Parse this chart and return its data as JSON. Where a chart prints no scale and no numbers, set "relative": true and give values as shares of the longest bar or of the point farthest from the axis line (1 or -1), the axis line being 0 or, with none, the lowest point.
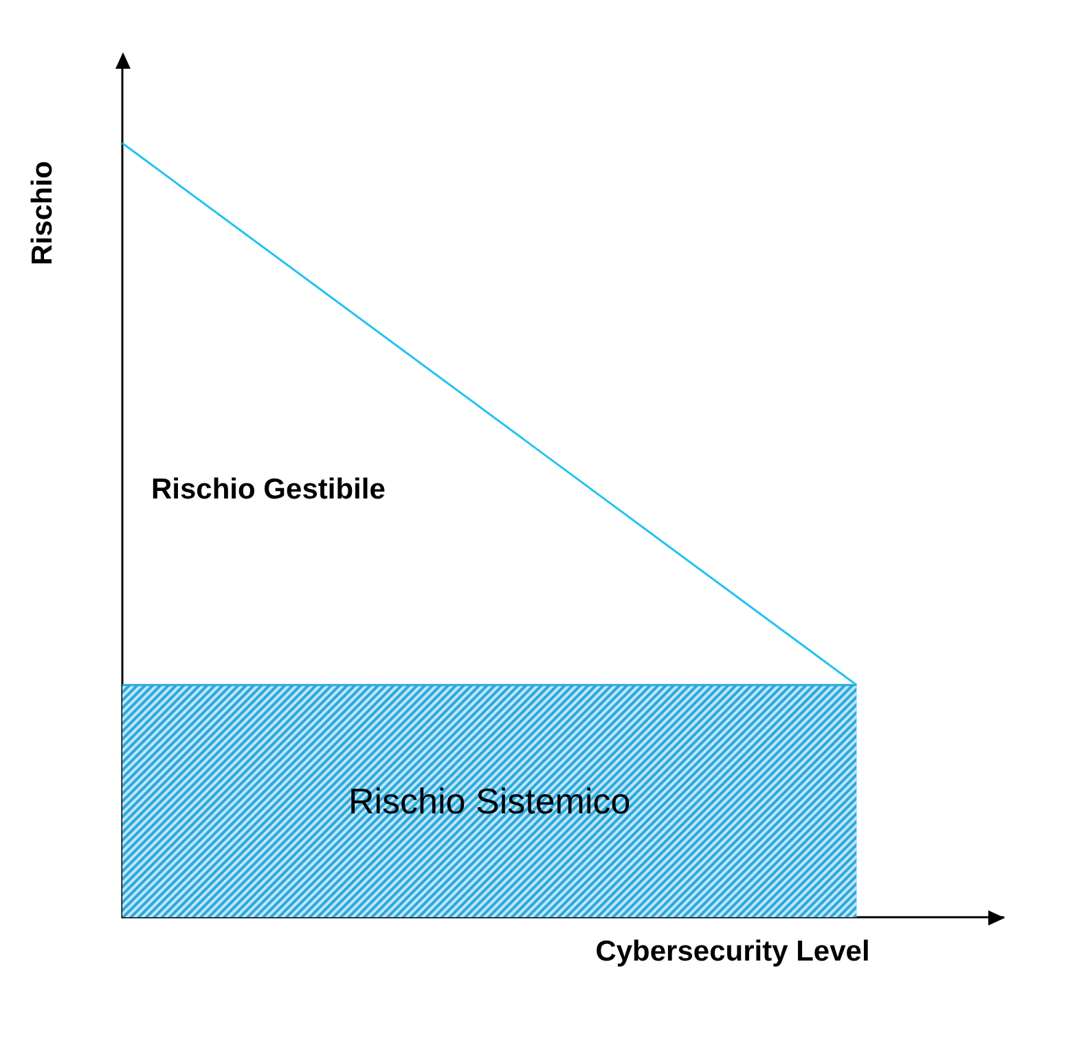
{
  "chart_data": {
    "type": "line",
    "relative": true,
    "categories": [
      null,
      null
    ],
    "xlabel": "Cybersecurity Level",
    "ylabel": "Rischio",
    "annotations": [
      "Rischio Gestibile"
    ],
    "series": [
      {
        "type": "line",
        "color": "#22c3f0",
        "values": [
          1,
          0.3
        ]
      },
      {
        "type": "area",
        "name": "Rischio Sistemico",
        "color": "#2aa9de",
        "values": [
          0.3,
          0.3
        ]
      }
    ],
    "marker": "none",
    "grid": false,
    "legend": false
  }
}
